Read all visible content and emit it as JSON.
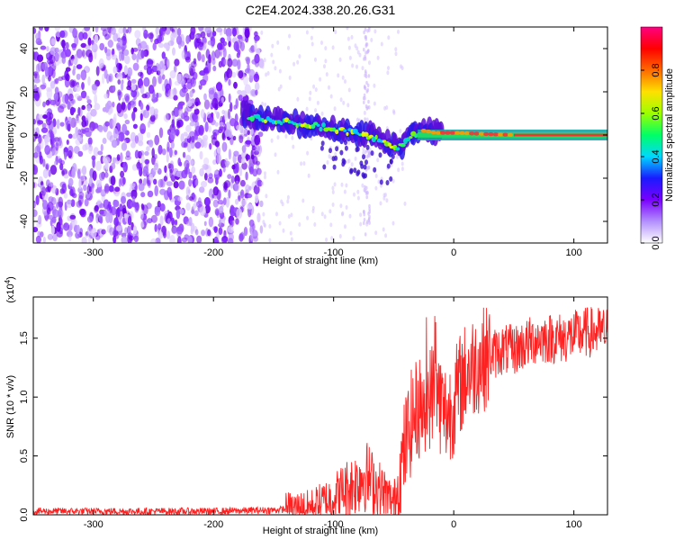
{
  "title": "C2E4.2024.338.20.26.G31",
  "chart_data": [
    {
      "type": "heatmap",
      "xlabel": "Height of straight line (km)",
      "ylabel": "Frequency (Hz)",
      "xlim": [
        -350,
        128
      ],
      "ylim": [
        -50,
        50
      ],
      "xticks": [
        -300,
        -200,
        -100,
        0,
        100
      ],
      "yticks": [
        -40,
        -20,
        0,
        20,
        40
      ],
      "colorbar": {
        "label": "Normalized spectral amplitude",
        "range": [
          0,
          1
        ],
        "ticks": [
          "0.0",
          "0.2",
          "0.4",
          "0.6",
          "0.8"
        ],
        "colors": [
          "#ffffff",
          "#b38fff",
          "#7a00ff",
          "#1a1aff",
          "#00d8ff",
          "#00ff66",
          "#9cff00",
          "#ffe000",
          "#ff6a00",
          "#ff0000",
          "#ff0080"
        ]
      },
      "ridge": {
        "x": [
          -175,
          -150,
          -125,
          -100,
          -85,
          -70,
          -55,
          -45,
          -35,
          -25,
          -15,
          0,
          25,
          50,
          75,
          100,
          128
        ],
        "y": [
          9,
          7,
          5,
          3,
          1,
          -1,
          -4,
          -6,
          0,
          2,
          1,
          1,
          0.5,
          0,
          0,
          0,
          0
        ]
      },
      "noise_region_x": [
        -350,
        -160
      ],
      "stripes_x": [
        -75,
        -70
      ]
    },
    {
      "type": "line",
      "xlabel": "Height of straight line (km)",
      "ylabel": "SNR (10 * v/v)",
      "yscale_label": "(x10",
      "yscale_exp": "4",
      "xlim": [
        -350,
        128
      ],
      "ylim": [
        0,
        1.85
      ],
      "xticks": [
        -300,
        -200,
        -100,
        0,
        100
      ],
      "yticks": [
        "0.0",
        "0.5",
        "1.0",
        "1.5"
      ],
      "color": "#ff2020",
      "series": [
        {
          "x": [
            -350,
            -300,
            -250,
            -200,
            -150,
            -120,
            -110,
            -100,
            -90,
            -80,
            -75,
            -70,
            -65,
            -60,
            -55,
            -50,
            -45,
            -40,
            -35,
            -30,
            -25,
            -20,
            -15,
            -10,
            -5,
            0,
            5,
            10,
            15,
            20,
            30,
            40,
            50,
            60,
            70,
            80,
            90,
            100,
            110,
            120,
            128
          ],
          "y": [
            0.03,
            0.03,
            0.03,
            0.03,
            0.04,
            0.06,
            0.1,
            0.15,
            0.22,
            0.28,
            0.35,
            0.3,
            0.25,
            0.2,
            0.15,
            0.1,
            0.3,
            0.6,
            0.8,
            0.9,
            0.95,
            1.0,
            1.1,
            0.9,
            0.85,
            0.95,
            1.1,
            1.2,
            1.25,
            1.3,
            1.35,
            1.4,
            1.4,
            1.45,
            1.5,
            1.5,
            1.5,
            1.52,
            1.55,
            1.55,
            1.55
          ]
        }
      ]
    }
  ]
}
